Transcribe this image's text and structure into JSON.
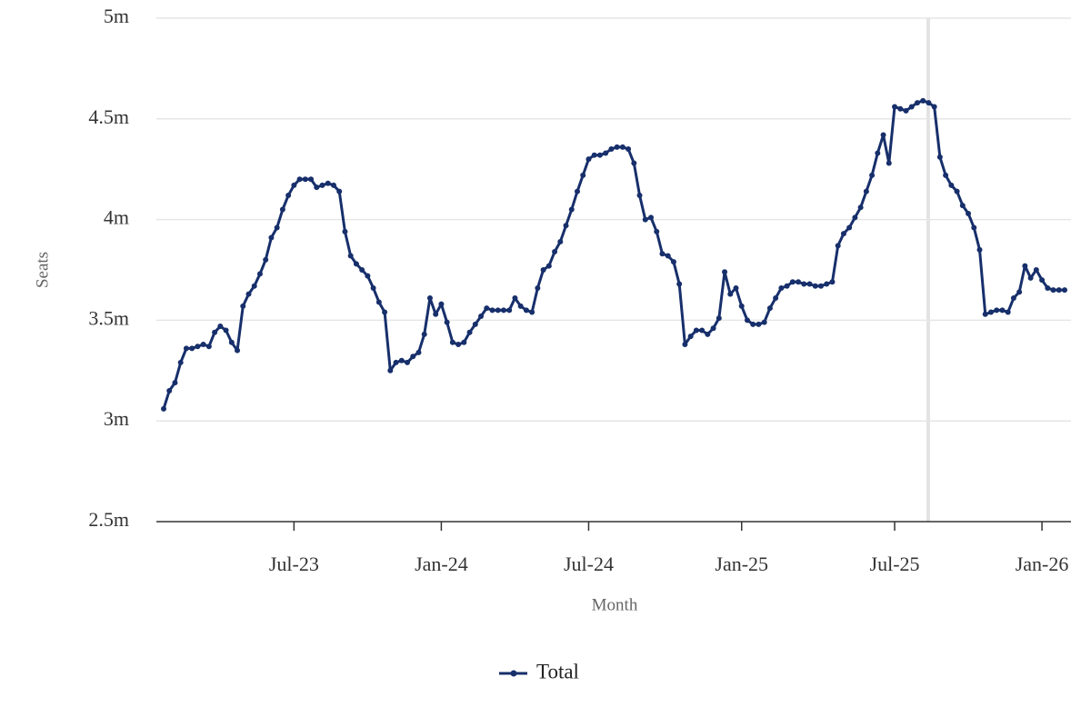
{
  "chart_data": {
    "type": "line",
    "y_label": "Seats",
    "x_label": "Month",
    "categories": [
      null,
      null,
      null,
      null,
      null,
      null,
      null,
      null,
      null,
      null,
      null,
      null,
      null,
      null,
      null,
      null,
      null,
      null,
      null,
      null,
      null,
      null,
      null,
      "Jul-23",
      null,
      null,
      null,
      null,
      null,
      null,
      null,
      null,
      null,
      null,
      null,
      null,
      null,
      null,
      null,
      null,
      null,
      null,
      null,
      null,
      null,
      null,
      null,
      null,
      null,
      "Jan-24",
      null,
      null,
      null,
      null,
      null,
      null,
      null,
      null,
      null,
      null,
      null,
      null,
      null,
      null,
      null,
      null,
      null,
      null,
      null,
      null,
      null,
      null,
      null,
      null,
      null,
      "Jul-24",
      null,
      null,
      null,
      null,
      null,
      null,
      null,
      null,
      null,
      null,
      null,
      null,
      null,
      null,
      null,
      null,
      null,
      null,
      null,
      null,
      null,
      null,
      null,
      null,
      null,
      null,
      "Jan-25",
      null,
      null,
      null,
      null,
      null,
      null,
      null,
      null,
      null,
      null,
      null,
      null,
      null,
      null,
      null,
      null,
      null,
      null,
      null,
      null,
      null,
      null,
      null,
      null,
      null,
      null,
      "Jul-25",
      null,
      null,
      null,
      null,
      null,
      null,
      null,
      null,
      null,
      null,
      null,
      null,
      null,
      null,
      null,
      null,
      null,
      null,
      null,
      null,
      null,
      null,
      null,
      null,
      null,
      "Jan-26",
      null,
      null,
      null,
      null
    ],
    "series": [
      {
        "name": "Total",
        "color": "#172f6b",
        "values": [
          3.06,
          3.15,
          3.19,
          3.29,
          3.36,
          3.36,
          3.37,
          3.38,
          3.37,
          3.44,
          3.47,
          3.45,
          3.39,
          3.35,
          3.57,
          3.63,
          3.67,
          3.73,
          3.8,
          3.91,
          3.96,
          4.05,
          4.12,
          4.17,
          4.2,
          4.2,
          4.2,
          4.16,
          4.17,
          4.18,
          4.17,
          4.14,
          3.94,
          3.82,
          3.78,
          3.75,
          3.72,
          3.66,
          3.59,
          3.54,
          3.25,
          3.29,
          3.3,
          3.29,
          3.32,
          3.34,
          3.43,
          3.61,
          3.53,
          3.58,
          3.49,
          3.39,
          3.38,
          3.39,
          3.44,
          3.48,
          3.52,
          3.56,
          3.55,
          3.55,
          3.55,
          3.55,
          3.61,
          3.57,
          3.55,
          3.54,
          3.66,
          3.75,
          3.77,
          3.84,
          3.89,
          3.97,
          4.05,
          4.14,
          4.22,
          4.3,
          4.32,
          4.32,
          4.33,
          4.35,
          4.36,
          4.36,
          4.35,
          4.28,
          4.12,
          4.0,
          4.01,
          3.94,
          3.83,
          3.82,
          3.79,
          3.68,
          3.38,
          3.42,
          3.45,
          3.45,
          3.43,
          3.46,
          3.51,
          3.74,
          3.63,
          3.66,
          3.57,
          3.5,
          3.48,
          3.48,
          3.49,
          3.56,
          3.61,
          3.66,
          3.67,
          3.69,
          3.69,
          3.68,
          3.68,
          3.67,
          3.67,
          3.68,
          3.69,
          3.87,
          3.93,
          3.96,
          4.01,
          4.06,
          4.14,
          4.22,
          4.33,
          4.42,
          4.28,
          4.56,
          4.55,
          4.54,
          4.56,
          4.58,
          4.59,
          4.58,
          4.56,
          4.31,
          4.22,
          4.17,
          4.14,
          4.07,
          4.03,
          3.96,
          3.85,
          3.53,
          3.54,
          3.55,
          3.55,
          3.54,
          3.61,
          3.64,
          3.77,
          3.71,
          3.75,
          3.7,
          3.66,
          3.65,
          3.65,
          3.65
        ]
      }
    ],
    "ylim": [
      2.5,
      5
    ],
    "yticks": [
      {
        "value": 2.5,
        "label": "2.5m"
      },
      {
        "value": 3,
        "label": "3m"
      },
      {
        "value": 3.5,
        "label": "3.5m"
      },
      {
        "value": 4,
        "label": "4m"
      },
      {
        "value": 4.5,
        "label": "4.5m"
      },
      {
        "value": 5,
        "label": "5m"
      }
    ],
    "grid": true,
    "legend": "bottom"
  }
}
